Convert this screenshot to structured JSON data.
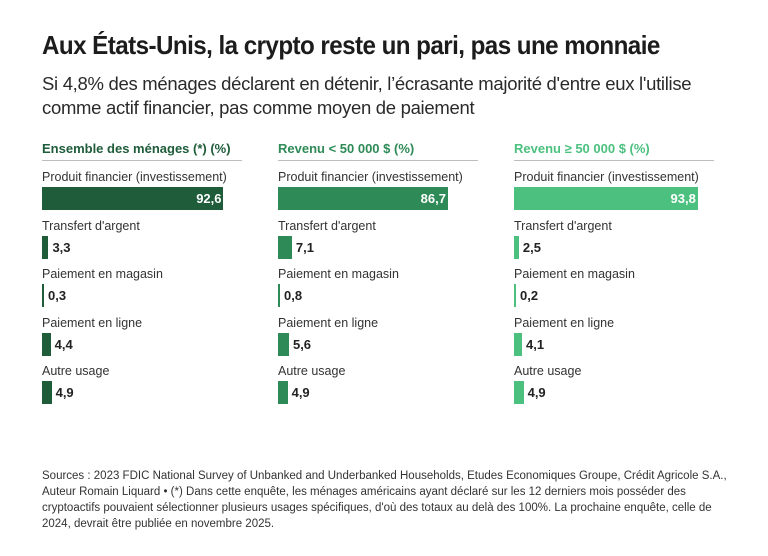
{
  "title": "Aux États-Unis, la crypto reste un pari, pas une monnaie",
  "subtitle": "Si 4,8% des ménages déclarent en détenir, l’écrasante majorité d'entre eux l'utilise comme actif financier, pas comme moyen de paiement",
  "source": "Sources : 2023 FDIC National Survey of Unbanked and Underbanked Households, Etudes Economiques Groupe, Crédit Agricole S.A., Auteur Romain Liquard • (*) Dans cette enquête, les ménages américains ayant déclaré sur les 12 derniers mois posséder des cryptoactifs pouvaient sélectionner plusieurs usages spécifiques, d'où des totaux au delà des 100%. La prochaine enquête, celle de 2024, devrait être publiée en novembre 2025.",
  "chart_data": [
    {
      "type": "bar",
      "orientation": "horizontal",
      "title": "Ensemble des ménages (*) (%)",
      "color": "#1e5c3a",
      "categories": [
        "Produit financier (investissement)",
        "Transfert d'argent",
        "Paiement en magasin",
        "Paiement en ligne",
        "Autre usage"
      ],
      "values": [
        92.6,
        3.3,
        0.3,
        4.4,
        4.9
      ],
      "labels": [
        "92,6",
        "3,3",
        "0,3",
        "4,4",
        "4,9"
      ],
      "xlim": [
        0,
        100
      ]
    },
    {
      "type": "bar",
      "orientation": "horizontal",
      "title": "Revenu < 50 000 $ (%)",
      "color": "#2e8b57",
      "categories": [
        "Produit financier (investissement)",
        "Transfert d'argent",
        "Paiement en magasin",
        "Paiement en ligne",
        "Autre usage"
      ],
      "values": [
        86.7,
        7.1,
        0.8,
        5.6,
        4.9
      ],
      "labels": [
        "86,7",
        "7,1",
        "0,8",
        "5,6",
        "4,9"
      ],
      "xlim": [
        0,
        100
      ]
    },
    {
      "type": "bar",
      "orientation": "horizontal",
      "title": "Revenu ≥ 50 000 $ (%)",
      "color": "#4cc17f",
      "categories": [
        "Produit financier (investissement)",
        "Transfert d'argent",
        "Paiement en magasin",
        "Paiement en ligne",
        "Autre usage"
      ],
      "values": [
        93.8,
        2.5,
        0.2,
        4.1,
        4.9
      ],
      "labels": [
        "93,8",
        "2,5",
        "0,2",
        "4,1",
        "4,9"
      ],
      "xlim": [
        0,
        100
      ]
    }
  ]
}
